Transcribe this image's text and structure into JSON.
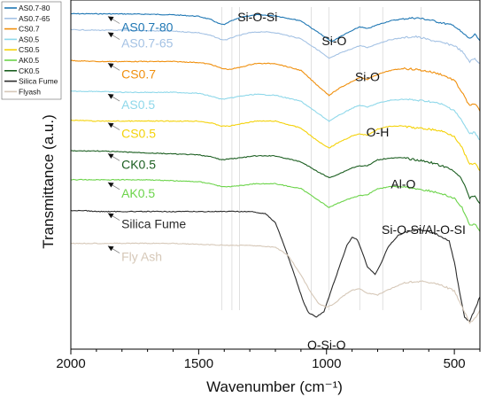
{
  "chart_data": {
    "type": "line",
    "title": "",
    "xlabel": "Wavenumber (cm⁻¹)",
    "ylabel": "Transmittance (a.u.)",
    "xlim": [
      2000,
      400
    ],
    "x_reversed": true,
    "y_ticks_shown": false,
    "xticks": [
      2000,
      1500,
      1000,
      500
    ],
    "grid": false,
    "legend_position": "top-left",
    "reference_lines": [
      1410,
      1370,
      1340,
      1060,
      990,
      870,
      780,
      630
    ],
    "series": [
      {
        "name": "AS0.7-80",
        "label": "AS0.7-80",
        "color": "#1f77b4",
        "points": [
          [
            2000,
            4.9
          ],
          [
            1900,
            5.0
          ],
          [
            1800,
            5.1
          ],
          [
            1700,
            5.4
          ],
          [
            1600,
            6.0
          ],
          [
            1500,
            7.5
          ],
          [
            1450,
            11
          ],
          [
            1420,
            15
          ],
          [
            1400,
            16
          ],
          [
            1380,
            13
          ],
          [
            1330,
            8
          ],
          [
            1270,
            6
          ],
          [
            1200,
            7
          ],
          [
            1100,
            12
          ],
          [
            1020,
            26
          ],
          [
            980,
            33
          ],
          [
            940,
            27
          ],
          [
            900,
            22
          ],
          [
            870,
            18
          ],
          [
            840,
            20
          ],
          [
            800,
            16
          ],
          [
            750,
            12
          ],
          [
            700,
            10
          ],
          [
            650,
            9
          ],
          [
            600,
            11
          ],
          [
            550,
            14
          ],
          [
            500,
            17
          ],
          [
            470,
            24
          ],
          [
            440,
            30
          ],
          [
            420,
            26
          ],
          [
            400,
            32
          ]
        ]
      },
      {
        "name": "AS0.7-65",
        "label": "AS0.7-65",
        "color": "#a4c2e4",
        "points": [
          [
            2000,
            21
          ],
          [
            1900,
            21.5
          ],
          [
            1800,
            21.5
          ],
          [
            1700,
            22
          ],
          [
            1600,
            22.5
          ],
          [
            1500,
            24
          ],
          [
            1450,
            27
          ],
          [
            1410,
            31
          ],
          [
            1390,
            31
          ],
          [
            1360,
            28
          ],
          [
            1300,
            24
          ],
          [
            1250,
            23
          ],
          [
            1200,
            24
          ],
          [
            1100,
            30
          ],
          [
            1030,
            42
          ],
          [
            990,
            50
          ],
          [
            950,
            45
          ],
          [
            900,
            40
          ],
          [
            870,
            37
          ],
          [
            840,
            39
          ],
          [
            800,
            35
          ],
          [
            750,
            31
          ],
          [
            700,
            29
          ],
          [
            650,
            28
          ],
          [
            600,
            31
          ],
          [
            550,
            34
          ],
          [
            500,
            37
          ],
          [
            470,
            43
          ],
          [
            440,
            53
          ],
          [
            420,
            50
          ],
          [
            400,
            55
          ]
        ]
      },
      {
        "name": "CS0.7",
        "label": "CS0.7",
        "color": "#f0900e",
        "points": [
          [
            2000,
            52
          ],
          [
            1900,
            53
          ],
          [
            1800,
            53
          ],
          [
            1700,
            53
          ],
          [
            1600,
            53
          ],
          [
            1500,
            54
          ],
          [
            1450,
            56
          ],
          [
            1410,
            60
          ],
          [
            1380,
            61
          ],
          [
            1340,
            59
          ],
          [
            1280,
            55
          ],
          [
            1200,
            55
          ],
          [
            1100,
            62
          ],
          [
            1040,
            76
          ],
          [
            990,
            87
          ],
          [
            950,
            80
          ],
          [
            900,
            73
          ],
          [
            870,
            69
          ],
          [
            840,
            71
          ],
          [
            800,
            66
          ],
          [
            750,
            62
          ],
          [
            700,
            60
          ],
          [
            650,
            61
          ],
          [
            600,
            63
          ],
          [
            550,
            66
          ],
          [
            500,
            72
          ],
          [
            470,
            84
          ],
          [
            440,
            98
          ],
          [
            420,
            95
          ],
          [
            400,
            103
          ]
        ]
      },
      {
        "name": "AS0.5",
        "label": "AS0.5",
        "color": "#8fd8ea",
        "points": [
          [
            2000,
            83
          ],
          [
            1900,
            83
          ],
          [
            1800,
            84
          ],
          [
            1700,
            84
          ],
          [
            1600,
            84
          ],
          [
            1500,
            85
          ],
          [
            1450,
            88
          ],
          [
            1410,
            91
          ],
          [
            1380,
            90
          ],
          [
            1340,
            88
          ],
          [
            1280,
            86
          ],
          [
            1200,
            87
          ],
          [
            1100,
            93
          ],
          [
            1040,
            104
          ],
          [
            990,
            113
          ],
          [
            950,
            107
          ],
          [
            900,
            100
          ],
          [
            870,
            97
          ],
          [
            840,
            99
          ],
          [
            800,
            95
          ],
          [
            750,
            92
          ],
          [
            700,
            91
          ],
          [
            650,
            92
          ],
          [
            600,
            93
          ],
          [
            550,
            96
          ],
          [
            500,
            102
          ],
          [
            470,
            113
          ],
          [
            440,
            126
          ],
          [
            420,
            124
          ],
          [
            400,
            132
          ]
        ]
      },
      {
        "name": "CS0.5",
        "label": "CS0.5",
        "color": "#f4d20a",
        "points": [
          [
            2000,
            112
          ],
          [
            1900,
            113
          ],
          [
            1800,
            113
          ],
          [
            1700,
            113
          ],
          [
            1600,
            113
          ],
          [
            1500,
            113
          ],
          [
            1450,
            115
          ],
          [
            1410,
            118
          ],
          [
            1380,
            118
          ],
          [
            1340,
            116
          ],
          [
            1280,
            113
          ],
          [
            1200,
            113
          ],
          [
            1100,
            120
          ],
          [
            1040,
            132
          ],
          [
            990,
            140
          ],
          [
            950,
            134
          ],
          [
            900,
            128
          ],
          [
            870,
            126
          ],
          [
            840,
            127
          ],
          [
            800,
            121
          ],
          [
            750,
            118
          ],
          [
            700,
            118
          ],
          [
            650,
            120
          ],
          [
            600,
            121
          ],
          [
            550,
            123
          ],
          [
            500,
            128
          ],
          [
            470,
            140
          ],
          [
            440,
            157
          ],
          [
            420,
            155
          ],
          [
            400,
            163
          ]
        ]
      },
      {
        "name": "CK0.5",
        "label": "CK0.5",
        "color": "#1b5e20",
        "points": [
          [
            2000,
            143
          ],
          [
            1900,
            143
          ],
          [
            1800,
            144
          ],
          [
            1700,
            145
          ],
          [
            1600,
            146
          ],
          [
            1500,
            147
          ],
          [
            1450,
            149
          ],
          [
            1410,
            152
          ],
          [
            1380,
            151
          ],
          [
            1340,
            150
          ],
          [
            1280,
            148
          ],
          [
            1200,
            148
          ],
          [
            1100,
            154
          ],
          [
            1040,
            163
          ],
          [
            990,
            170
          ],
          [
            950,
            166
          ],
          [
            900,
            160
          ],
          [
            870,
            158
          ],
          [
            840,
            158
          ],
          [
            800,
            152
          ],
          [
            750,
            150
          ],
          [
            700,
            150
          ],
          [
            650,
            152
          ],
          [
            600,
            154
          ],
          [
            550,
            158
          ],
          [
            500,
            163
          ],
          [
            470,
            172
          ],
          [
            440,
            190
          ],
          [
            420,
            188
          ],
          [
            400,
            196
          ]
        ]
      },
      {
        "name": "AK0.5",
        "label": "AK0.5",
        "color": "#6cd44a",
        "points": [
          [
            2000,
            172
          ],
          [
            1900,
            172
          ],
          [
            1800,
            172
          ],
          [
            1700,
            172
          ],
          [
            1600,
            173
          ],
          [
            1500,
            174
          ],
          [
            1450,
            176
          ],
          [
            1410,
            179
          ],
          [
            1380,
            179
          ],
          [
            1340,
            178
          ],
          [
            1280,
            176
          ],
          [
            1200,
            176
          ],
          [
            1100,
            181
          ],
          [
            1040,
            191
          ],
          [
            990,
            200
          ],
          [
            950,
            195
          ],
          [
            900,
            190
          ],
          [
            870,
            188
          ],
          [
            840,
            187
          ],
          [
            800,
            181
          ],
          [
            750,
            179
          ],
          [
            700,
            179
          ],
          [
            650,
            181
          ],
          [
            600,
            183
          ],
          [
            550,
            186
          ],
          [
            500,
            191
          ],
          [
            470,
            200
          ],
          [
            440,
            218
          ],
          [
            420,
            216
          ],
          [
            400,
            224
          ]
        ]
      },
      {
        "name": "Silica Fume",
        "label": "Silica Fume",
        "color": "#2b2b2b",
        "points": [
          [
            2000,
            203
          ],
          [
            1950,
            203
          ],
          [
            1900,
            204
          ],
          [
            1800,
            204
          ],
          [
            1700,
            204
          ],
          [
            1600,
            204
          ],
          [
            1500,
            204
          ],
          [
            1400,
            204
          ],
          [
            1300,
            204
          ],
          [
            1240,
            206
          ],
          [
            1200,
            215
          ],
          [
            1160,
            242
          ],
          [
            1120,
            272
          ],
          [
            1090,
            295
          ],
          [
            1070,
            306
          ],
          [
            1040,
            310
          ],
          [
            1010,
            305
          ],
          [
            980,
            282
          ],
          [
            950,
            260
          ],
          [
            920,
            238
          ],
          [
            900,
            230
          ],
          [
            880,
            232
          ],
          [
            860,
            245
          ],
          [
            840,
            260
          ],
          [
            810,
            267
          ],
          [
            790,
            258
          ],
          [
            760,
            240
          ],
          [
            720,
            228
          ],
          [
            680,
            224
          ],
          [
            640,
            222
          ],
          [
            600,
            224
          ],
          [
            560,
            228
          ],
          [
            520,
            234
          ],
          [
            500,
            254
          ],
          [
            480,
            285
          ],
          [
            460,
            310
          ],
          [
            440,
            315
          ],
          [
            420,
            302
          ],
          [
            400,
            290
          ]
        ]
      },
      {
        "name": "Flyash",
        "label": "Fly Ash",
        "color": "#d6c8b8",
        "points": [
          [
            2000,
            236
          ],
          [
            1900,
            236
          ],
          [
            1800,
            236
          ],
          [
            1700,
            236
          ],
          [
            1600,
            236
          ],
          [
            1500,
            237
          ],
          [
            1400,
            238
          ],
          [
            1300,
            238
          ],
          [
            1200,
            240
          ],
          [
            1150,
            248
          ],
          [
            1100,
            268
          ],
          [
            1060,
            286
          ],
          [
            1030,
            297
          ],
          [
            1000,
            300
          ],
          [
            970,
            297
          ],
          [
            940,
            290
          ],
          [
            900,
            283
          ],
          [
            870,
            282
          ],
          [
            840,
            286
          ],
          [
            800,
            288
          ],
          [
            760,
            283
          ],
          [
            700,
            276
          ],
          [
            650,
            274
          ],
          [
            600,
            275
          ],
          [
            550,
            278
          ],
          [
            500,
            284
          ],
          [
            470,
            300
          ],
          [
            440,
            316
          ],
          [
            420,
            312
          ],
          [
            400,
            303
          ]
        ]
      }
    ],
    "legend": [
      {
        "label": "AS0.7-80",
        "color": "#1f77b4"
      },
      {
        "label": "AS0.7-65",
        "color": "#a4c2e4"
      },
      {
        "label": "CS0.7",
        "color": "#f0900e"
      },
      {
        "label": "AS0.5",
        "color": "#8fd8ea"
      },
      {
        "label": "CS0.5",
        "color": "#f4d20a"
      },
      {
        "label": "AK0.5",
        "color": "#6cd44a"
      },
      {
        "label": "CK0.5",
        "color": "#1b5e20"
      },
      {
        "label": "Silica Fume",
        "color": "#2b2b2b"
      },
      {
        "label": "Flyash",
        "color": "#d6c8b8"
      }
    ],
    "annotations": [
      {
        "text": "Si-O-Si",
        "x": 1270,
        "y": 0
      },
      {
        "text": "Si-O",
        "x": 970,
        "y": 24
      },
      {
        "text": "Si-O",
        "x": 840,
        "y": 60
      },
      {
        "text": "O-H",
        "x": 800,
        "y": 116
      },
      {
        "text": "Al-O",
        "x": 700,
        "y": 168
      },
      {
        "text": "Si-O-Si/Al-O-SI",
        "x": 620,
        "y": 214
      },
      {
        "text": "O-Si-O",
        "x": 1000,
        "y": 330
      }
    ]
  }
}
